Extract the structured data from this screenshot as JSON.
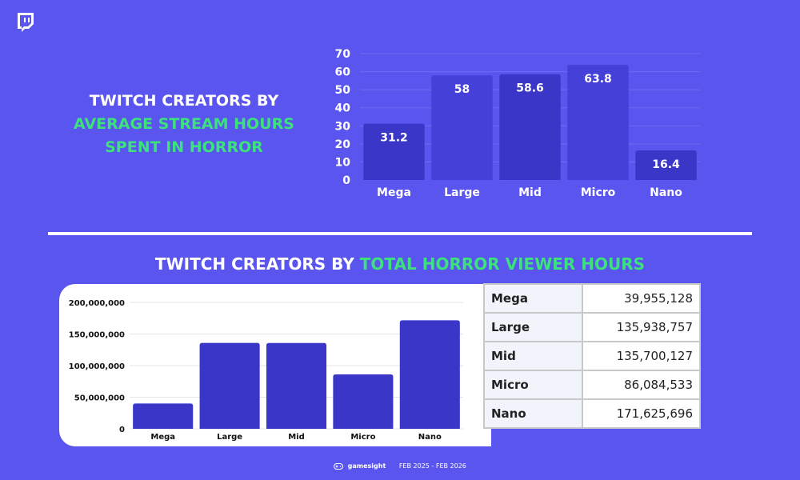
{
  "top_title": {
    "line1": "TWITCH CREATORS BY",
    "line2": "AVERAGE STREAM HOURS",
    "line3": "SPENT IN HORROR"
  },
  "bottom_title": {
    "white": "TWITCH CREATORS BY",
    "green": "TOTAL HORROR VIEWER HOURS"
  },
  "colors": {
    "background": "#5a55ee",
    "bar_dark": "#3a36c8",
    "bar_light": "#4440d8",
    "accent_green": "#3ce27c"
  },
  "chart_data": [
    {
      "type": "bar",
      "title": "TWITCH CREATORS BY AVERAGE STREAM HOURS SPENT IN HORROR",
      "categories": [
        "Mega",
        "Large",
        "Mid",
        "Micro",
        "Nano"
      ],
      "values": [
        31.2,
        58,
        58.6,
        63.8,
        16.4
      ],
      "data_labels": [
        "31.2",
        "58",
        "58.6",
        "63.8",
        "16.4"
      ],
      "y_ticks": [
        "0",
        "10",
        "20",
        "30",
        "40",
        "50",
        "60",
        "70"
      ],
      "ylim": [
        0,
        70
      ],
      "grid": true
    },
    {
      "type": "bar",
      "title": "TWITCH CREATORS BY TOTAL HORROR VIEWER HOURS",
      "categories": [
        "Mega",
        "Large",
        "Mid",
        "Micro",
        "Nano"
      ],
      "values": [
        39955128,
        135938757,
        135700127,
        86084533,
        171625696
      ],
      "y_ticks": [
        "0",
        "50,000,000",
        "100,000,000",
        "150,000,000",
        "200,000,000"
      ],
      "ylim": [
        0,
        200000000
      ],
      "grid": true
    }
  ],
  "table": {
    "rows": [
      {
        "name": "Mega",
        "value": "39,955,128"
      },
      {
        "name": "Large",
        "value": "135,938,757"
      },
      {
        "name": "Mid",
        "value": "135,700,127"
      },
      {
        "name": "Micro",
        "value": "86,084,533"
      },
      {
        "name": "Nano",
        "value": "171,625,696"
      }
    ]
  },
  "footer": {
    "brand": "gamesight",
    "date_range": "FEB 2025 - FEB 2026",
    "icon": "gamepad-icon"
  },
  "logo": {
    "icon": "twitch-logo-icon"
  }
}
